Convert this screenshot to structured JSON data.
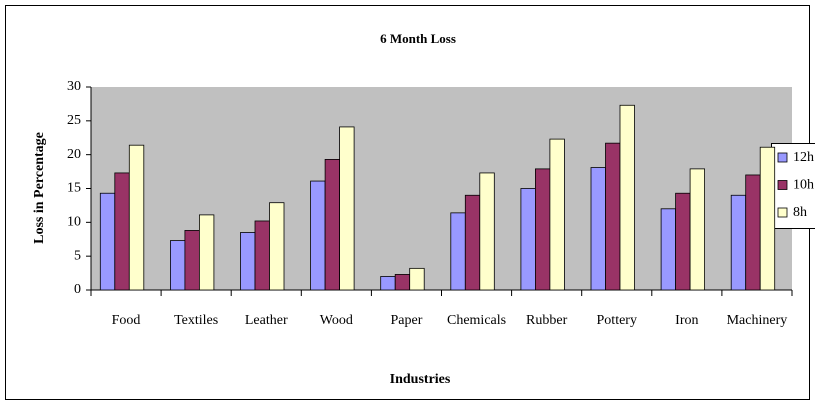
{
  "chart_data": {
    "type": "bar",
    "title": "6 Month Loss",
    "x_label": "Industries",
    "y_label": "Loss in Percentage",
    "categories": [
      "Food",
      "Textiles",
      "Leather",
      "Wood",
      "Paper",
      "Chemicals",
      "Rubber",
      "Pottery",
      "Iron",
      "Machinery"
    ],
    "series": [
      {
        "name": "12h",
        "color": "#9999ff",
        "values": [
          14.3,
          7.3,
          8.5,
          16.1,
          2.0,
          11.4,
          15.0,
          18.1,
          12.0,
          14.0
        ]
      },
      {
        "name": "10h",
        "color": "#993366",
        "values": [
          17.3,
          8.8,
          10.2,
          19.3,
          2.3,
          14.0,
          17.9,
          21.7,
          14.3,
          17.0
        ]
      },
      {
        "name": "8h",
        "color": "#ffffcc",
        "values": [
          21.4,
          11.1,
          12.9,
          24.1,
          3.2,
          17.3,
          22.3,
          27.3,
          17.9,
          21.1
        ]
      }
    ],
    "ylim": [
      0,
      30
    ],
    "yticks": [
      0,
      5,
      10,
      15,
      20,
      25,
      30
    ],
    "legend": "right"
  }
}
